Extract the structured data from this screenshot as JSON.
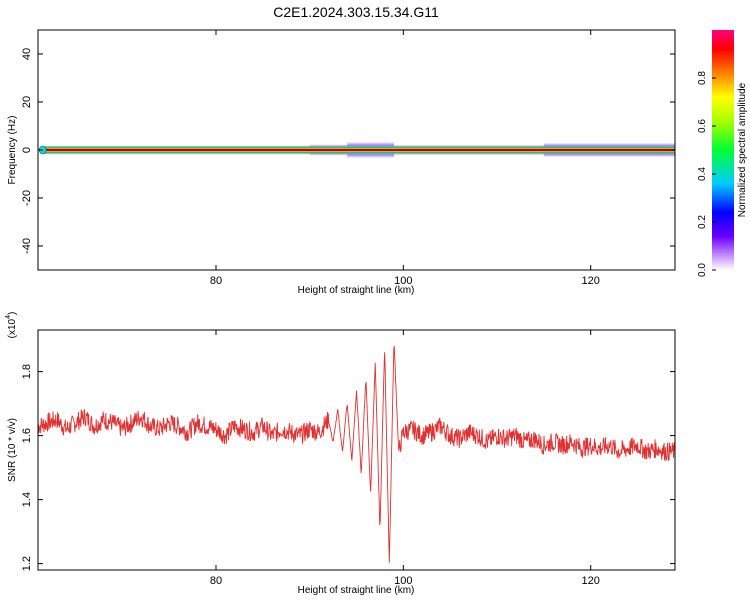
{
  "title": "C2E1.2024.303.15.34.G11",
  "colors": {
    "snr_line": "#e03030",
    "axis": "#000000",
    "background": "#ffffff"
  },
  "chart_data": [
    {
      "type": "heatmap",
      "title": "C2E1.2024.303.15.34.G11",
      "xlabel": "Height of straight line (km)",
      "ylabel": "Frequency (Hz)",
      "xlim": [
        61,
        129
      ],
      "ylim": [
        -50,
        50
      ],
      "xticks": [
        80,
        100,
        120
      ],
      "yticks": [
        -40,
        -20,
        0,
        20,
        40
      ],
      "colorbar": {
        "label": "Normalized spectral amplitude",
        "range": [
          0,
          1
        ],
        "ticks": [
          0.0,
          0.2,
          0.4,
          0.6,
          0.8
        ],
        "colormap": "rainbow (white - violet - blue - cyan - green - yellow - orange - red - magenta)"
      },
      "band": {
        "frequency_hz": 0,
        "x_start": 61.5,
        "x_end": 129,
        "description": "Narrow band of high normalized amplitude (~0.9) centred at 0 Hz across all heights; broadens to about ±3 Hz near 95-98 km and after 115 km"
      }
    },
    {
      "type": "line",
      "xlabel": "Height of straight line (km)",
      "ylabel": "SNR (10 * v/v)",
      "y_multiplier_label": "(x10",
      "y_multiplier_exp": "4",
      "y_multiplier_close": ")",
      "xlim": [
        61,
        129
      ],
      "ylim": [
        1.18,
        1.93
      ],
      "xticks": [
        80,
        100,
        120
      ],
      "yticks": [
        1.2,
        1.4,
        1.6,
        1.8
      ],
      "series": [
        {
          "x": [
            61,
            62,
            63,
            64,
            65,
            66,
            67,
            68,
            69,
            70,
            71,
            72,
            73,
            74,
            75,
            76,
            77,
            78,
            79,
            80,
            81,
            82,
            83,
            84,
            85,
            86,
            87,
            88,
            89,
            90,
            91,
            92,
            92.5,
            93,
            93.5,
            94,
            94.5,
            95,
            95.5,
            96,
            96.5,
            97,
            97.5,
            98,
            98.5,
            99,
            99.5,
            100,
            101,
            102,
            103,
            104,
            105,
            106,
            107,
            108,
            109,
            110,
            111,
            112,
            113,
            114,
            115,
            116,
            117,
            118,
            119,
            120,
            121,
            122,
            123,
            124,
            125,
            126,
            127,
            128,
            129
          ],
          "values": [
            1.63,
            1.64,
            1.65,
            1.62,
            1.64,
            1.66,
            1.63,
            1.65,
            1.64,
            1.62,
            1.64,
            1.66,
            1.63,
            1.62,
            1.64,
            1.63,
            1.61,
            1.64,
            1.63,
            1.62,
            1.6,
            1.63,
            1.62,
            1.61,
            1.63,
            1.6,
            1.62,
            1.61,
            1.6,
            1.62,
            1.61,
            1.65,
            1.58,
            1.68,
            1.55,
            1.7,
            1.52,
            1.74,
            1.48,
            1.78,
            1.42,
            1.83,
            1.3,
            1.88,
            1.2,
            1.9,
            1.55,
            1.61,
            1.62,
            1.6,
            1.61,
            1.63,
            1.6,
            1.59,
            1.61,
            1.6,
            1.58,
            1.6,
            1.59,
            1.6,
            1.58,
            1.59,
            1.57,
            1.58,
            1.57,
            1.58,
            1.56,
            1.57,
            1.56,
            1.57,
            1.55,
            1.56,
            1.57,
            1.55,
            1.56,
            1.55,
            1.55
          ]
        }
      ]
    }
  ]
}
